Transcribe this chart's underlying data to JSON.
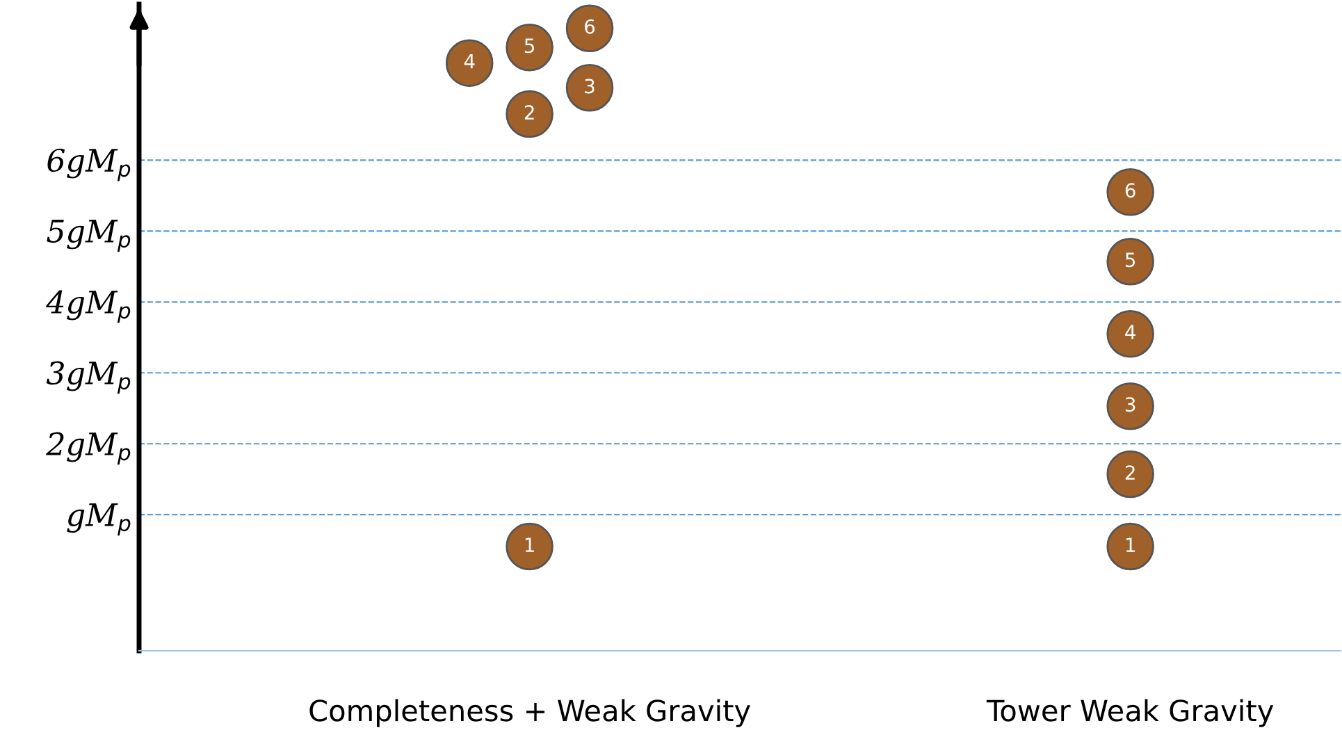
{
  "chart_data": {
    "type": "scatter",
    "categories": [
      null,
      null,
      null,
      null,
      null,
      null,
      "Completeness + Weak Gravity",
      null,
      null,
      null,
      null,
      null,
      null,
      null,
      null,
      null,
      "Tower Weak Gravity",
      null,
      null,
      null
    ],
    "ylim": [
      -0.92,
      8.2
    ],
    "yticks": [
      {
        "value": 1,
        "label": "gM$_{p}$"
      },
      {
        "value": 2,
        "label": "2gM$_{p}$"
      },
      {
        "value": 3,
        "label": "3gM$_{p}$"
      },
      {
        "value": 4,
        "label": "4gM$_{p}$"
      },
      {
        "value": 5,
        "label": "5gM$_{p}$"
      },
      {
        "value": 6,
        "label": "6gM$_{p}$"
      }
    ],
    "grid": "y",
    "marker": "circle",
    "series": [
      {
        "color": "#a0602a",
        "values": [
          null,
          null,
          null,
          null,
          null,
          7.37,
          0.55,
          7.02,
          null,
          null,
          null,
          null,
          null,
          null,
          null,
          null,
          0.55,
          null,
          null,
          null
        ]
      },
      {
        "color": "#a0602a",
        "values": [
          null,
          null,
          null,
          null,
          null,
          null,
          6.65,
          7.86,
          null,
          null,
          null,
          null,
          null,
          null,
          null,
          null,
          1.57,
          null,
          null,
          null
        ]
      },
      {
        "color": "#a0602a",
        "values": [
          null,
          null,
          null,
          null,
          null,
          null,
          7.59,
          null,
          null,
          null,
          null,
          null,
          null,
          null,
          null,
          null,
          2.53,
          null,
          null,
          null
        ]
      },
      {
        "color": "#a0602a",
        "values": [
          null,
          null,
          null,
          null,
          null,
          null,
          null,
          null,
          null,
          null,
          null,
          null,
          null,
          null,
          null,
          null,
          3.55,
          null,
          null,
          null
        ]
      },
      {
        "color": "#a0602a",
        "values": [
          null,
          null,
          null,
          null,
          null,
          null,
          null,
          null,
          null,
          null,
          null,
          null,
          null,
          null,
          null,
          null,
          4.57,
          null,
          null,
          null
        ]
      },
      {
        "color": "#a0602a",
        "values": [
          null,
          null,
          null,
          null,
          null,
          null,
          null,
          null,
          null,
          null,
          null,
          null,
          null,
          null,
          null,
          null,
          5.55,
          null,
          null,
          null
        ]
      }
    ],
    "annotations": [
      {
        "text": "1",
        "x": "Completeness + Weak Gravity",
        "y": 0.55
      },
      {
        "text": "2",
        "x": "Completeness + Weak Gravity",
        "y": 6.65
      },
      {
        "text": "3",
        "y": 7.02
      },
      {
        "text": "4",
        "y": 7.37
      },
      {
        "text": "5",
        "x": "Completeness + Weak Gravity",
        "y": 7.59
      },
      {
        "text": "6",
        "y": 7.86
      },
      {
        "text": "1",
        "x": "Tower Weak Gravity",
        "y": 0.55
      },
      {
        "text": "2",
        "x": "Tower Weak Gravity",
        "y": 1.57
      },
      {
        "text": "3",
        "x": "Tower Weak Gravity",
        "y": 2.53
      },
      {
        "text": "4",
        "x": "Tower Weak Gravity",
        "y": 3.55
      },
      {
        "text": "5",
        "x": "Tower Weak Gravity",
        "y": 4.57
      },
      {
        "text": "6",
        "x": "Tower Weak Gravity",
        "y": 5.55
      }
    ]
  }
}
